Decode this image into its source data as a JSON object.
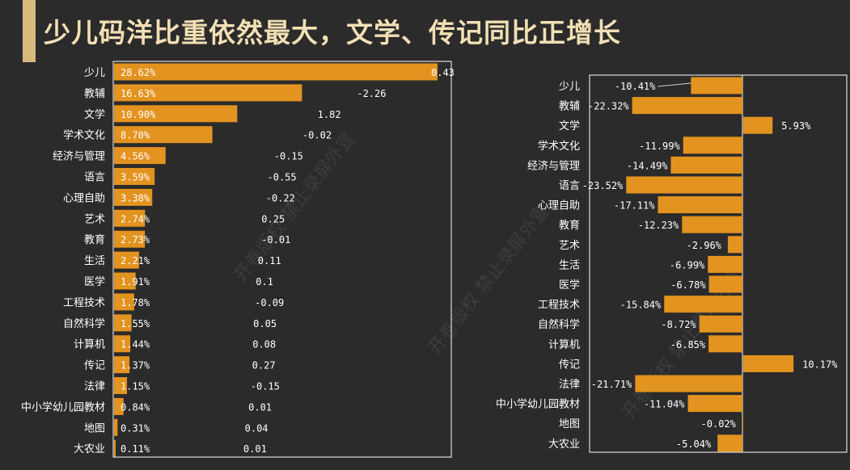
{
  "page_title": "少儿码洋比重依然最大，文学、传记同比正增长",
  "watermarks": [
    "开卷版权 禁止录屏外宣",
    "开卷版权 禁止录屏外宣",
    "开卷版权 禁止录屏外宣"
  ],
  "colors": {
    "bar": "#e3931f",
    "background": "#2b2b2b",
    "title": "#f2dfb4",
    "accent": "#d8b97c",
    "frame": "#ffffff"
  },
  "chart_data": [
    {
      "type": "bar",
      "orientation": "horizontal",
      "title": "",
      "categories": [
        "少儿",
        "教辅",
        "文学",
        "学术文化",
        "经济与管理",
        "语言",
        "心理自助",
        "艺术",
        "教育",
        "生活",
        "医学",
        "工程技术",
        "自然科学",
        "计算机",
        "传记",
        "法律",
        "中小学幼儿园教材",
        "地图",
        "大农业"
      ],
      "values": [
        28.62,
        16.63,
        10.9,
        8.7,
        4.56,
        3.59,
        3.38,
        2.74,
        2.73,
        2.21,
        1.91,
        1.78,
        1.55,
        1.44,
        1.37,
        1.15,
        0.84,
        0.31,
        0.11
      ],
      "value_labels": [
        "28.62%",
        "16.63%",
        "10.90%",
        "8.70%",
        "4.56%",
        "3.59%",
        "3.38%",
        "2.74%",
        "2.73%",
        "2.21%",
        "1.91%",
        "1.78%",
        "1.55%",
        "1.44%",
        "1.37%",
        "1.15%",
        "0.84%",
        "0.31%",
        "0.11%"
      ],
      "change_labels": [
        "0.43",
        "-2.26",
        "1.82",
        "-0.02",
        "-0.15",
        "-0.55",
        "-0.22",
        "0.25",
        "-0.01",
        "0.11",
        "0.1",
        "-0.09",
        "0.05",
        "0.08",
        "0.27",
        "-0.15",
        "0.01",
        "0.04",
        "0.01"
      ],
      "xlim": [
        0,
        29
      ]
    },
    {
      "type": "bar",
      "orientation": "horizontal",
      "title": "",
      "categories": [
        "少儿",
        "教辅",
        "文学",
        "学术文化",
        "经济与管理",
        "语言",
        "心理自助",
        "教育",
        "艺术",
        "生活",
        "医学",
        "工程技术",
        "自然科学",
        "计算机",
        "传记",
        "法律",
        "中小学幼儿园教材",
        "地图",
        "大农业"
      ],
      "values": [
        -10.41,
        -22.32,
        5.93,
        -11.99,
        -14.49,
        -23.52,
        -17.11,
        -12.23,
        -2.96,
        -6.99,
        -6.78,
        -15.84,
        -8.72,
        -6.85,
        10.17,
        -21.71,
        -11.04,
        -0.02,
        -5.04
      ],
      "value_labels": [
        "-10.41%",
        "-22.32%",
        "5.93%",
        "-11.99%",
        "-14.49%",
        "-23.52%",
        "-17.11%",
        "-12.23%",
        "-2.96%",
        "-6.99%",
        "-6.78%",
        "-15.84%",
        "-8.72%",
        "-6.85%",
        "10.17%",
        "-21.71%",
        "-11.04%",
        "-0.02%",
        "-5.04%"
      ],
      "xlim": [
        -24,
        11
      ]
    }
  ]
}
